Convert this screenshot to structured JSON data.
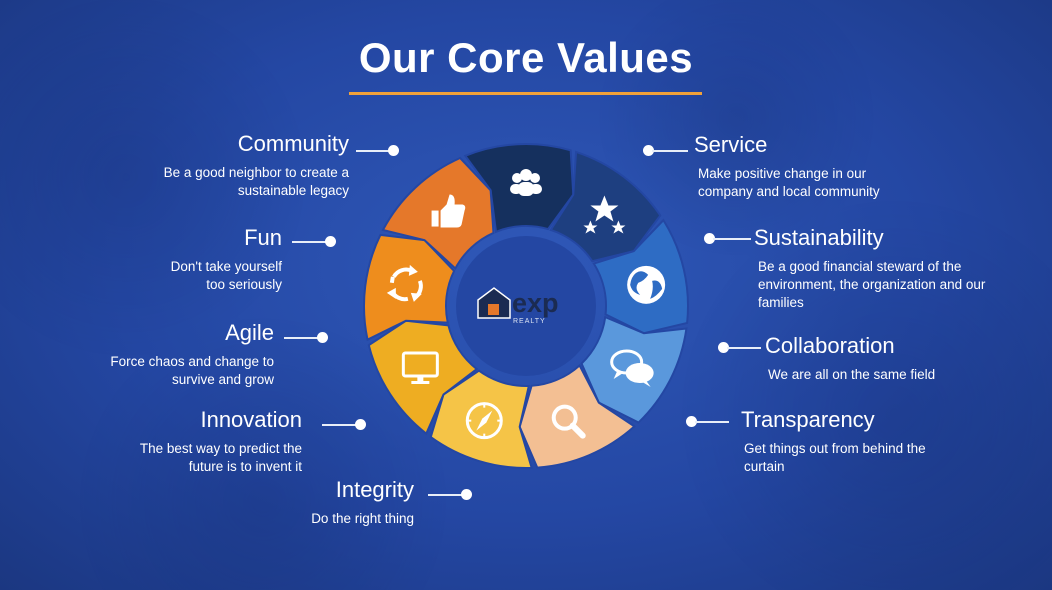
{
  "title": "Our Core Values",
  "center_logo": {
    "text": "exp",
    "subtext": "REALTY"
  },
  "values": [
    {
      "id": "community",
      "title": "Community",
      "desc": "Be a good neighbor to create a sustainable legacy",
      "icon": "people-icon",
      "color": "#15305e"
    },
    {
      "id": "service",
      "title": "Service",
      "desc": "Make positive change in our company and local community",
      "icon": "stars-icon",
      "color": "#1e3f80"
    },
    {
      "id": "sustainability",
      "title": "Sustainability",
      "desc": "Be a good financial steward of the environment, the organization and our families",
      "icon": "globe-icon",
      "color": "#2e6cc4"
    },
    {
      "id": "collaboration",
      "title": "Collaboration",
      "desc": "We are all on the same field",
      "icon": "chat-icon",
      "color": "#5a98dc"
    },
    {
      "id": "transparency",
      "title": "Transparency",
      "desc": "Get things out from behind the curtain",
      "icon": "magnifier-icon",
      "color": "#f3bf93"
    },
    {
      "id": "integrity",
      "title": "Integrity",
      "desc": "Do the right thing",
      "icon": "compass-icon",
      "color": "#f5c447"
    },
    {
      "id": "innovation",
      "title": "Innovation",
      "desc": "The best way to predict the future is to invent it",
      "icon": "monitor-icon",
      "color": "#eead22"
    },
    {
      "id": "agile",
      "title": "Agile",
      "desc": "Force chaos and change to survive and grow",
      "icon": "cycle-icon",
      "color": "#ee8d1d"
    },
    {
      "id": "fun",
      "title": "Fun",
      "desc": "Don't take yourself too seriously",
      "icon": "thumbs-up-icon",
      "color": "#e5782a"
    }
  ]
}
